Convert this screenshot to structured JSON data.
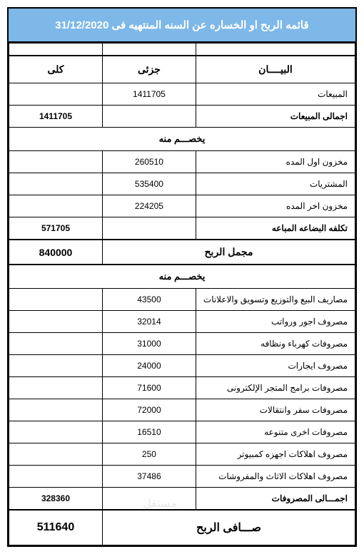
{
  "title": "قائمه الربح او الخساره عن السنه المنتهيه فى 31/12/2020",
  "headers": {
    "description": "البيــــان",
    "partial": "جزئى",
    "total": "كلى"
  },
  "rows": [
    {
      "desc": "المبيعات",
      "partial": "1411705",
      "total": ""
    },
    {
      "desc": "اجمالى المبيعات",
      "partial": "",
      "total": "1411705",
      "bold": true
    },
    {
      "section": "يخصـــم منه"
    },
    {
      "desc": "مخزون اول المده",
      "partial": "260510",
      "total": ""
    },
    {
      "desc": "المشتريات",
      "partial": "535400",
      "total": ""
    },
    {
      "desc": "مخزون اخر المده",
      "partial": "224205",
      "total": ""
    },
    {
      "desc": "تكلفه البضاعه المباعه",
      "partial": "",
      "total": "571705",
      "bold": true
    },
    {
      "gross": true,
      "desc": "مجمل الربح",
      "total": "840000"
    },
    {
      "section": "يخصـــم منه"
    },
    {
      "desc": "مصاريف البيع والتوزيع وتسويق والاعلانات",
      "partial": "43500",
      "total": ""
    },
    {
      "desc": "مصروف اجور ورواتب",
      "partial": "32014",
      "total": ""
    },
    {
      "desc": "مصروفات كهرباء ونظافه",
      "partial": "31000",
      "total": ""
    },
    {
      "desc": "مصروف ايجارات",
      "partial": "24000",
      "total": ""
    },
    {
      "desc": "مصروفات برامج المتجر الإلكترونى",
      "partial": "71600",
      "total": ""
    },
    {
      "desc": "مصروفات سفر وانتقالات",
      "partial": "72000",
      "total": ""
    },
    {
      "desc": "مصروفات اخرى متنوعه",
      "partial": "16510",
      "total": ""
    },
    {
      "desc": "مصروف اهلاكات اجهزه كمبيوتر",
      "partial": "250",
      "total": ""
    },
    {
      "desc": "مصروف اهلاكات الاثاث والمفروشات",
      "partial": "37486",
      "total": ""
    },
    {
      "desc": "اجمـــالى المصروفات",
      "partial": "",
      "total": "328360",
      "bold": true
    },
    {
      "net": true,
      "desc": "صـــافى الربح",
      "total": "511640"
    }
  ],
  "watermark": "مستقل"
}
